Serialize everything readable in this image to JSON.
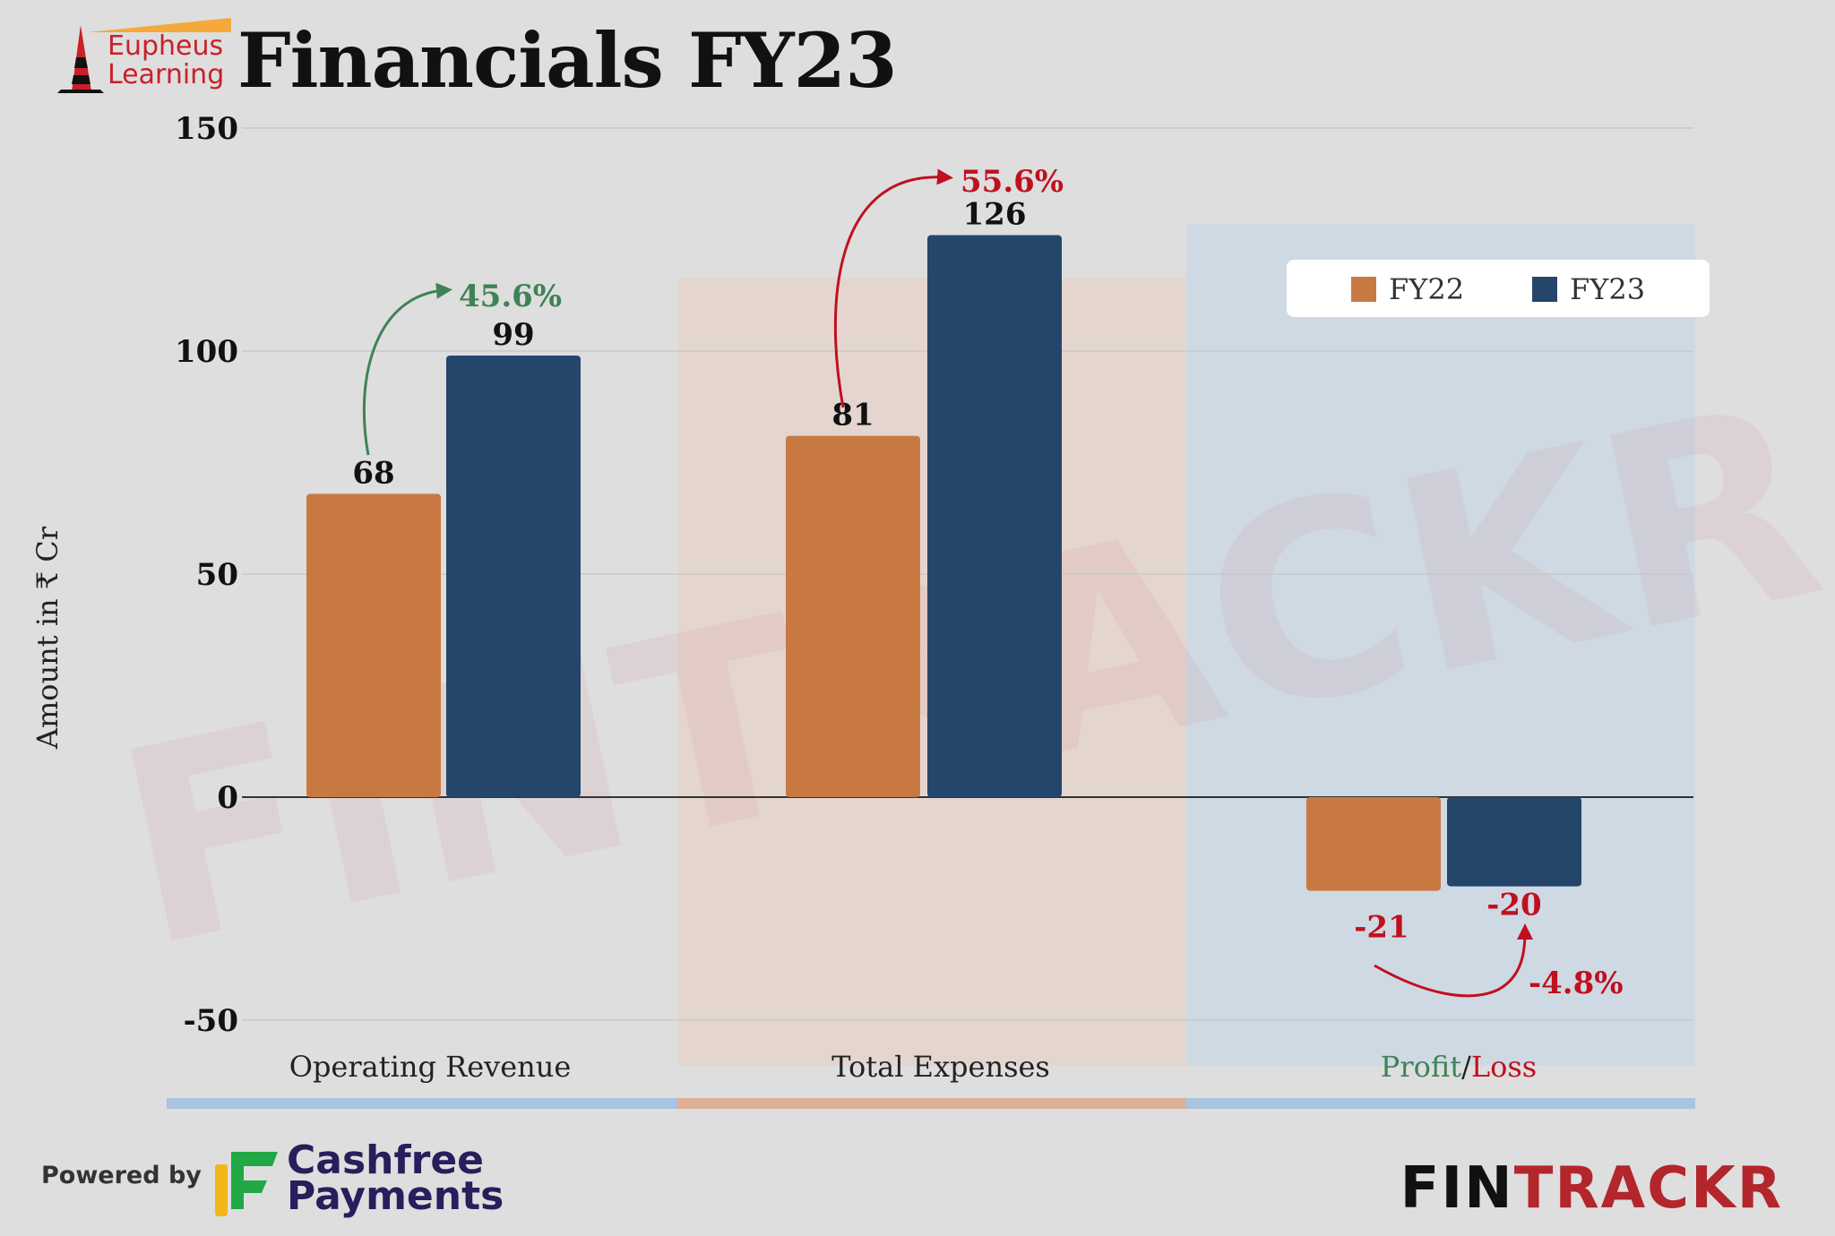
{
  "header": {
    "title": "Financials FY23",
    "logo_line1": "Eupheus",
    "logo_line2": "Learning"
  },
  "footer": {
    "powered_by": "Powered by",
    "cashfree_line1": "Cashfree",
    "cashfree_line2": "Payments",
    "fintrackr_fin": "FIN",
    "fintrackr_trackr": "TRACKR"
  },
  "watermark": "FINTRACKR",
  "colors": {
    "fy22": "#c87942",
    "fy23": "#24466b",
    "growth_positive": "#3f8256",
    "growth_negative": "#c0101e"
  },
  "chart_data": {
    "type": "bar",
    "ylabel": "Amount in ₹ Cr",
    "ylim": [
      -50,
      150
    ],
    "yticks": [
      150,
      100,
      50,
      0,
      -50
    ],
    "grid": true,
    "legend_position": "top-right",
    "categories": [
      "Operating Revenue",
      "Total Expenses",
      "Profit/Loss"
    ],
    "category_label_parts": [
      [
        {
          "text": "Operating Revenue",
          "color": "#222222"
        }
      ],
      [
        {
          "text": "Total Expenses",
          "color": "#222222"
        }
      ],
      [
        {
          "text": "Profit",
          "color": "#3f8256"
        },
        {
          "text": "/",
          "color": "#222222"
        },
        {
          "text": "Loss",
          "color": "#c0101e"
        }
      ]
    ],
    "series": [
      {
        "name": "FY22",
        "values": [
          68,
          81,
          -21
        ]
      },
      {
        "name": "FY23",
        "values": [
          99,
          126,
          -20
        ]
      }
    ],
    "value_labels": [
      [
        "68",
        "81",
        "-21"
      ],
      [
        "99",
        "126",
        "-20"
      ]
    ],
    "growth_annotations": [
      "45.6%",
      "55.6%",
      "-4.8%"
    ]
  }
}
